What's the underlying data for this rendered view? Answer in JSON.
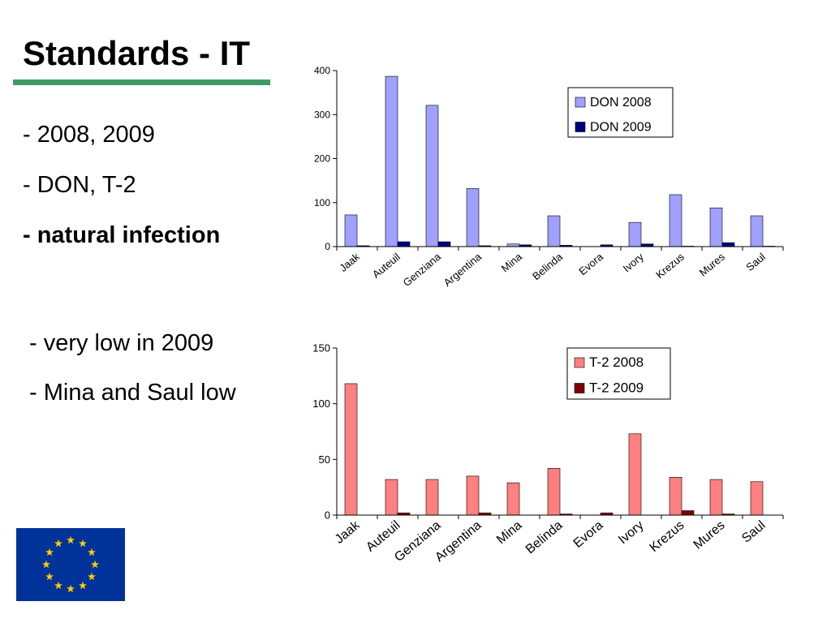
{
  "slide": {
    "title": "Standards - IT",
    "bullets_top": [
      "- 2008, 2009",
      "- DON, T-2",
      "- natural infection"
    ],
    "bullets_bottom": [
      "- very low in 2009",
      "- Mina and Saul low"
    ]
  },
  "colors": {
    "title_rule": "#3f9a68",
    "don_2008": "#a0a0ff",
    "don_2009": "#000080",
    "t2_2008": "#ff8080",
    "t2_2009": "#800000",
    "flag_blue": "#003399",
    "flag_star": "#ffcc00"
  },
  "chart_data": [
    {
      "type": "bar",
      "categories": [
        "Jaak",
        "Auteuil",
        "Genziana",
        "Argentina",
        "Mina",
        "Belinda",
        "Evora",
        "Ivory",
        "Krezus",
        "Mures",
        "Saul"
      ],
      "series": [
        {
          "name": "DON 2008",
          "values": [
            72,
            387,
            321,
            132,
            6,
            70,
            0,
            55,
            118,
            88,
            70
          ]
        },
        {
          "name": "DON 2009",
          "values": [
            2,
            11,
            11,
            2,
            4,
            3,
            4,
            6,
            1,
            9,
            1
          ]
        }
      ],
      "yticks": [
        "0",
        "100",
        "200",
        "300",
        "400"
      ],
      "ylim": [
        0,
        400
      ],
      "legend": "top-right",
      "title": "",
      "xlabel": "",
      "ylabel": ""
    },
    {
      "type": "bar",
      "categories": [
        "Jaak",
        "Auteuil",
        "Genziana",
        "Argentina",
        "Mina",
        "Belinda",
        "Evora",
        "Ivory",
        "Krezus",
        "Mures",
        "Saul"
      ],
      "series": [
        {
          "name": "T-2 2008",
          "values": [
            118,
            32,
            32,
            35,
            29,
            42,
            0,
            73,
            34,
            32,
            30
          ]
        },
        {
          "name": "T-2 2009",
          "values": [
            0,
            2,
            0,
            2,
            0,
            1,
            2,
            0,
            4,
            1,
            0
          ]
        }
      ],
      "yticks": [
        "0",
        "50",
        "100",
        "150"
      ],
      "ylim": [
        0,
        150
      ],
      "legend": "top-right",
      "title": "",
      "xlabel": "",
      "ylabel": ""
    }
  ]
}
